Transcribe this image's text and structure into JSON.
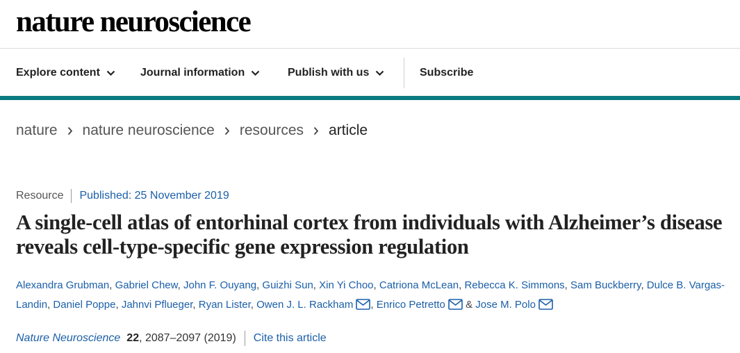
{
  "site": {
    "logo_text": "nature neuroscience"
  },
  "nav": {
    "items": [
      {
        "label": "Explore content"
      },
      {
        "label": "Journal information"
      },
      {
        "label": "Publish with us"
      }
    ],
    "subscribe_label": "Subscribe"
  },
  "breadcrumb": [
    "nature",
    "nature neuroscience",
    "resources",
    "article"
  ],
  "article": {
    "type": "Resource",
    "published": "Published: 25 November 2019",
    "title": "A single-cell atlas of entorhinal cortex from individuals with Alzheimer’s disease reveals cell-type-specific gene expression regulation",
    "authors": [
      "Alexandra Grubman",
      "Gabriel Chew",
      "John F. Ouyang",
      "Guizhi Sun",
      "Xin Yi Choo",
      "Catriona McLean",
      "Rebecca K. Simmons",
      "Sam Buckberry",
      "Dulce B. Vargas-Landin",
      "Daniel Poppe",
      "Jahnvi Pflueger",
      "Ryan Lister",
      "Owen J. L. Rackham",
      "Enrico Petretto",
      "Jose M. Polo"
    ],
    "separators": {
      "comma": ", ",
      "ampersand": " & "
    },
    "citation": {
      "journal": "Nature Neuroscience",
      "volume": "22",
      "pages_year": ", 2087–2097 (2019)",
      "cite_label": "Cite this article"
    }
  },
  "icons": {
    "chevron": "chevron-down-icon",
    "breadcrumb_sep": "chevron-right-icon",
    "mail": "mail-icon"
  },
  "colors": {
    "teal_rule": "#0a7b80",
    "link_blue": "#1b5fa8",
    "text": "#222222"
  }
}
